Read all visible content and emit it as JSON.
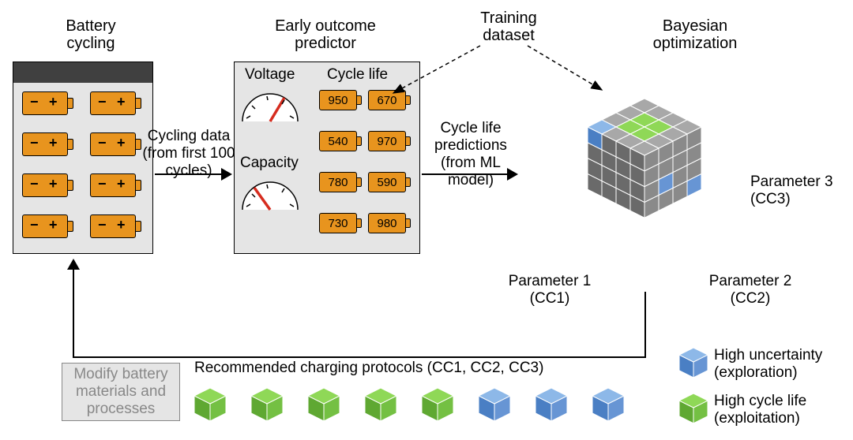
{
  "colors": {
    "panel_bg": "#e5e5e5",
    "panel_dark": "#404040",
    "battery_orange": "#e8941e",
    "cube_gray_top": "#a8a8a8",
    "cube_gray_left": "#6a6a6a",
    "cube_gray_right": "#8a8a8a",
    "cube_green_top": "#8fd857",
    "cube_green_left": "#5fa832",
    "cube_green_right": "#74c043",
    "cube_blue_top": "#8db8e8",
    "cube_blue_left": "#4a7fc4",
    "cube_blue_right": "#6795d4",
    "text": "#000000",
    "gray_text": "#888888",
    "gauge_needle": "#d62c1f"
  },
  "labels": {
    "battery_cycling": "Battery cycling",
    "early_predictor": "Early outcome predictor",
    "training_dataset": "Training dataset",
    "bayesian": "Bayesian optimization",
    "cycling_data_l1": "Cycling data",
    "cycling_data_l2": "(from first 100 cycles)",
    "cycle_pred_l1": "Cycle life predictions",
    "cycle_pred_l2": "(from ML model)",
    "voltage": "Voltage",
    "capacity": "Capacity",
    "cycle_life": "Cycle life",
    "param1_l1": "Parameter 1",
    "param1_l2": "(CC1)",
    "param2_l1": "Parameter 2",
    "param2_l2": "(CC2)",
    "param3_l1": "Parameter 3",
    "param3_l2": "(CC3)",
    "modify_l1": "Modify battery",
    "modify_l2": "materials and",
    "modify_l3": "processes",
    "recommended": "Recommended charging protocols (CC1, CC2, CC3)",
    "legend_blue_l1": "High uncertainty",
    "legend_blue_l2": "(exploration)",
    "legend_green_l1": "High cycle life",
    "legend_green_l2": "(exploitation)"
  },
  "cycle_values": [
    [
      "950",
      "670"
    ],
    [
      "540",
      "970"
    ],
    [
      "780",
      "590"
    ],
    [
      "730",
      "980"
    ]
  ],
  "battery_grid": {
    "rows": 4,
    "cols": 2
  },
  "bottom_cubes": [
    "green",
    "green",
    "green",
    "green",
    "green",
    "blue",
    "blue",
    "blue"
  ],
  "big_cube": {
    "N": 4,
    "green_cells": [
      "1,1,3",
      "2,1,3",
      "1,2,3",
      "2,2,3",
      "1,1,2",
      "2,1,2"
    ],
    "blue_cells": [
      "0,3,3",
      "3,2,1",
      "0,0,1",
      "3,0,0"
    ]
  },
  "fontsizes": {
    "title": 20,
    "body": 19,
    "small": 18
  }
}
